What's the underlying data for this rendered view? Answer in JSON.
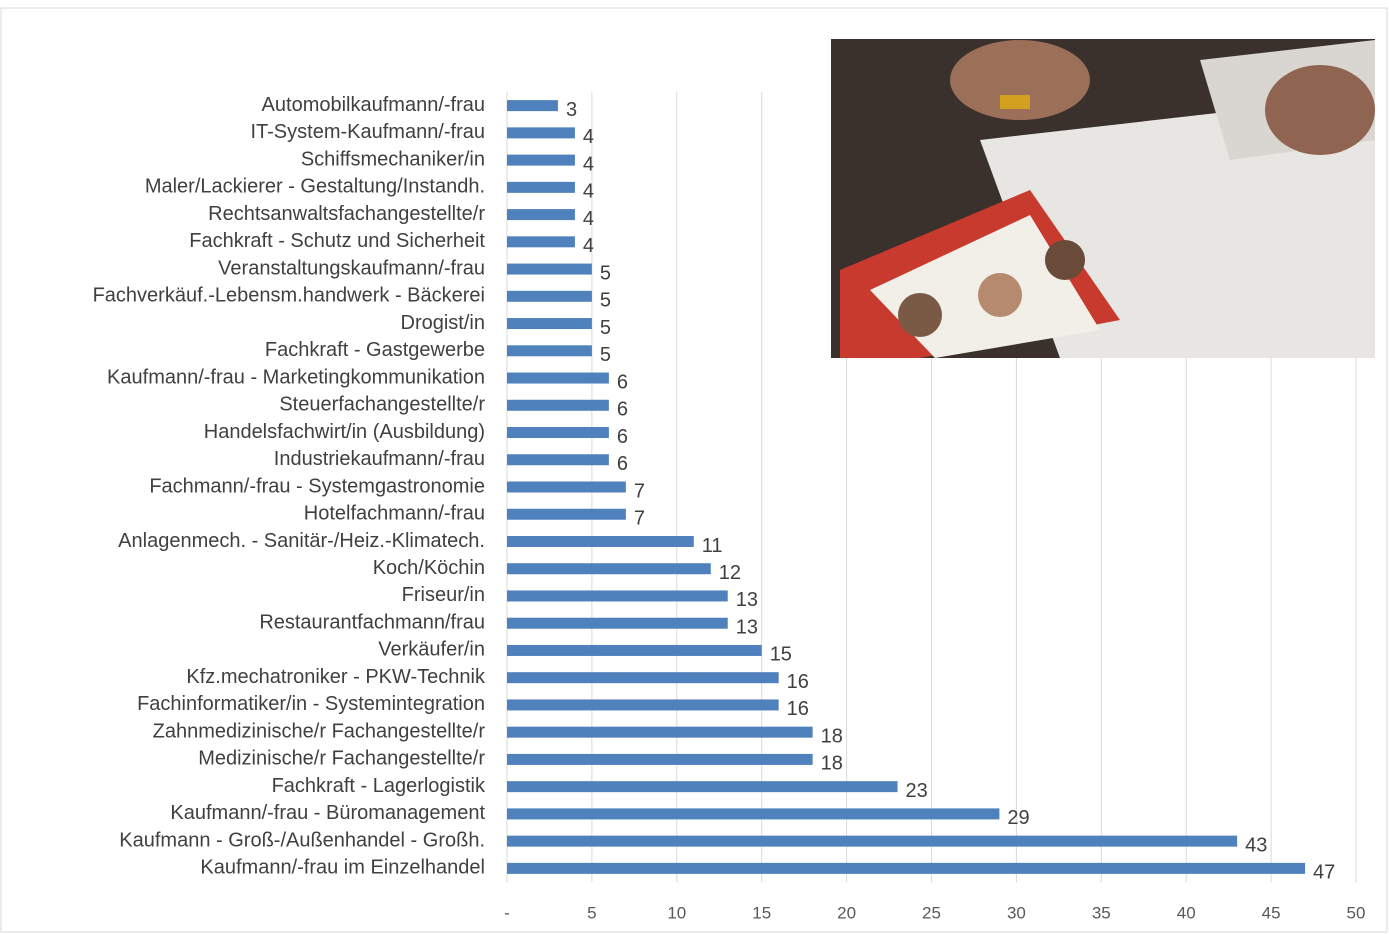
{
  "chart_data": {
    "type": "bar",
    "orientation": "horizontal",
    "categories": [
      "Automobilkaufmann/-frau",
      "IT-System-Kaufmann/-frau",
      "Schiffsmechaniker/in",
      "Maler/Lackierer - Gestaltung/Instandh.",
      "Rechtsanwaltsfachangestellte/r",
      "Fachkraft - Schutz und Sicherheit",
      "Veranstaltungskaufmann/-frau",
      "Fachverkäuf.-Lebensm.handwerk - Bäckerei",
      "Drogist/in",
      "Fachkraft - Gastgewerbe",
      "Kaufmann/-frau - Marketingkommunikation",
      "Steuerfachangestellte/r",
      "Handelsfachwirt/in (Ausbildung)",
      "Industriekaufmann/-frau",
      "Fachmann/-frau - Systemgastronomie",
      "Hotelfachmann/-frau",
      "Anlagenmech. - Sanitär-/Heiz.-Klimatech.",
      "Koch/Köchin",
      "Friseur/in",
      "Restaurantfachmann/frau",
      "Verkäufer/in",
      "Kfz.mechatroniker - PKW-Technik",
      "Fachinformatiker/in - Systemintegration",
      "Zahnmedizinische/r Fachangestellte/r",
      "Medizinische/r Fachangestellte/r",
      "Fachkraft - Lagerlogistik",
      "Kaufmann/-frau - Büromanagement",
      "Kaufmann - Groß-/Außenhandel - Großh.",
      "Kaufmann/-frau im Einzelhandel"
    ],
    "values": [
      3,
      4,
      4,
      4,
      4,
      4,
      5,
      5,
      5,
      5,
      6,
      6,
      6,
      6,
      7,
      7,
      11,
      12,
      13,
      13,
      15,
      16,
      16,
      18,
      18,
      23,
      29,
      43,
      47
    ],
    "color": "#4f81bd",
    "xlim": [
      0,
      50
    ],
    "xticks": [
      {
        "value": 0,
        "label": "-"
      },
      5,
      10,
      15,
      20,
      25,
      30,
      35,
      40,
      45,
      50
    ],
    "grid": true
  }
}
